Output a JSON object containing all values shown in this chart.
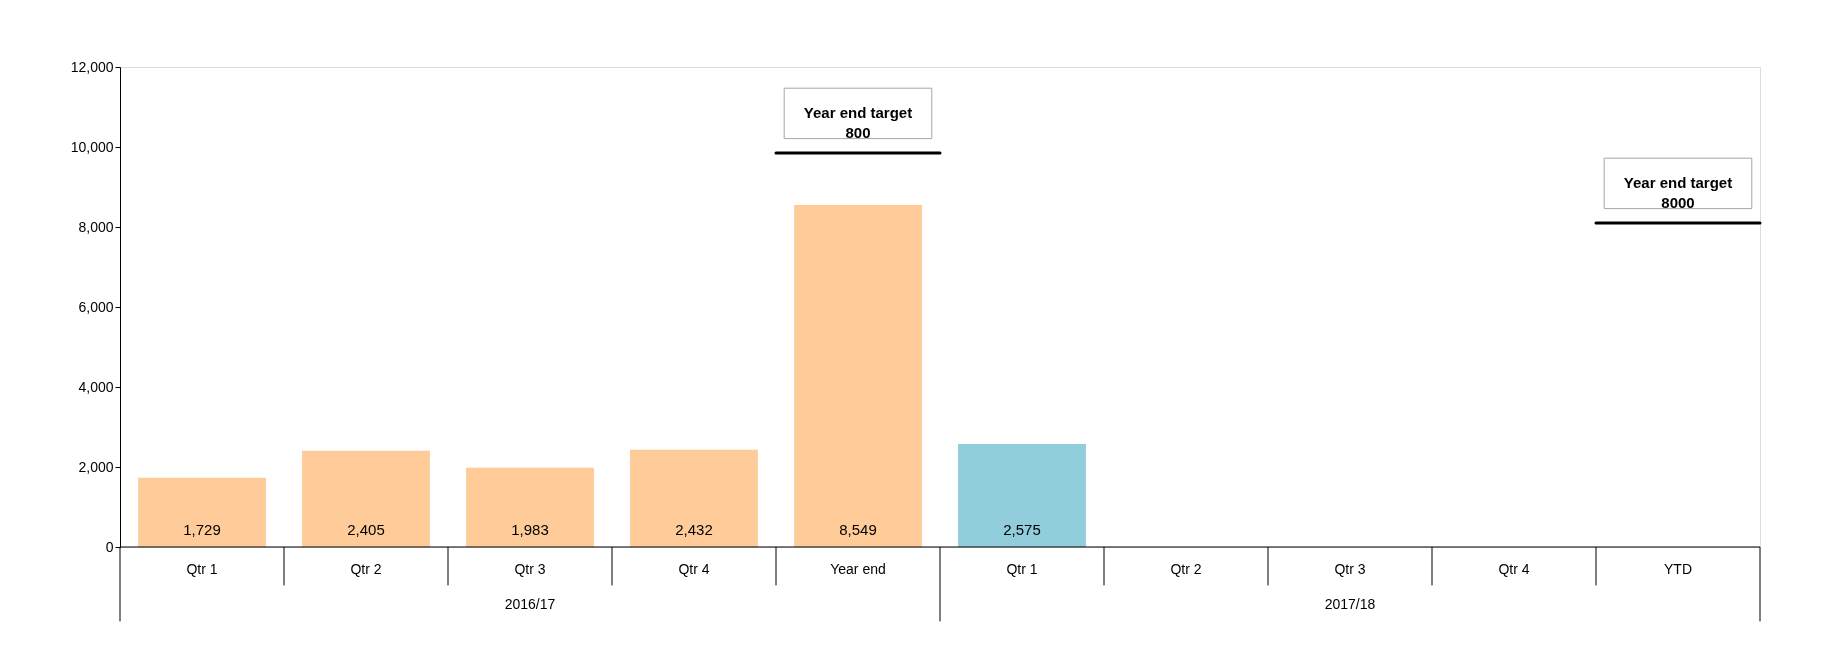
{
  "chart_data": {
    "type": "bar",
    "categories": [
      "Qtr 1",
      "Qtr 2",
      "Qtr 3",
      "Qtr 4",
      "Year end",
      "Qtr 1",
      "Qtr 2",
      "Qtr 3",
      "Qtr 4",
      "YTD"
    ],
    "values": [
      1729,
      2405,
      1983,
      2432,
      8549,
      2575,
      null,
      null,
      null,
      null
    ],
    "colors": [
      "#ffcc99",
      "#ffcc99",
      "#ffcc99",
      "#ffcc99",
      "#ffcc99",
      "#92cddc",
      "#ffcc99",
      "#ffcc99",
      "#ffcc99",
      "#ffcc99"
    ],
    "value_labels": [
      "1,729",
      "2,405",
      "1,983",
      "2,432",
      "8,549",
      "2,575",
      null,
      null,
      null,
      null
    ],
    "grid": false,
    "ylim": [
      0,
      12000
    ],
    "yticks": [
      0,
      {
        "value": 2000,
        "label": "2,000"
      },
      {
        "value": 4000,
        "label": "4,000"
      },
      {
        "value": 6000,
        "label": "6,000"
      },
      {
        "value": 8000,
        "label": "8,000"
      },
      {
        "value": 10000,
        "label": "10,000"
      },
      {
        "value": 12000,
        "label": "12,000"
      }
    ],
    "ref_lines": [
      {
        "axis": "y",
        "value": 9850
      },
      {
        "axis": "y",
        "value": 8100
      }
    ],
    "annotations": [
      {
        "text": "Year end target\n800",
        "x": "Year end",
        "y": 9850
      },
      {
        "text": "Year end target\n8000",
        "x": "YTD",
        "y": 8100
      },
      "2016/17",
      "2017/18"
    ]
  }
}
